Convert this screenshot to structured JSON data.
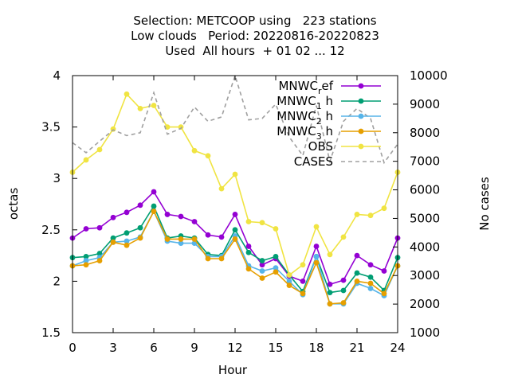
{
  "chart_data": {
    "type": "line",
    "title_lines": [
      "Selection: METCOOP using   223 stations",
      "Low clouds   Period: 20220816-20220823",
      "Used  All hours  + 01 02 ... 12"
    ],
    "xlabel": "Hour",
    "ylabel": "octas",
    "y2label": "No cases",
    "xlim": [
      0,
      24
    ],
    "ylim": [
      1.5,
      4
    ],
    "y2lim": [
      1000,
      10000
    ],
    "x_ticks": [
      "0",
      "3",
      "6",
      "9",
      "12",
      "15",
      "18",
      "21",
      "24"
    ],
    "y_ticks": [
      "1.5",
      "2",
      "2.5",
      "3",
      "3.5",
      "4"
    ],
    "y2_ticks": [
      "1000",
      "2000",
      "3000",
      "4000",
      "5000",
      "6000",
      "7000",
      "8000",
      "9000",
      "10000"
    ],
    "x": [
      0,
      1,
      2,
      3,
      4,
      5,
      6,
      7,
      8,
      9,
      10,
      11,
      12,
      13,
      14,
      15,
      16,
      17,
      18,
      19,
      20,
      21,
      22,
      23,
      24
    ],
    "series": [
      {
        "name": "MNWC_ref",
        "legend": [
          "MNWC",
          "r",
          "ef"
        ],
        "color": "#9400d3",
        "axis": "y",
        "values": [
          2.42,
          2.51,
          2.52,
          2.62,
          2.67,
          2.74,
          2.87,
          2.65,
          2.63,
          2.58,
          2.45,
          2.43,
          2.65,
          2.34,
          2.16,
          2.22,
          2.05,
          2.0,
          2.34,
          1.97,
          2.01,
          2.25,
          2.16,
          2.1,
          2.42
        ]
      },
      {
        "name": "MNWC_1h",
        "legend": [
          "MNWC",
          "1",
          " h"
        ],
        "color": "#009e73",
        "axis": "y",
        "values": [
          2.23,
          2.24,
          2.27,
          2.42,
          2.47,
          2.52,
          2.73,
          2.42,
          2.44,
          2.42,
          2.26,
          2.25,
          2.5,
          2.28,
          2.2,
          2.24,
          2.06,
          1.9,
          2.24,
          1.89,
          1.91,
          2.08,
          2.04,
          1.91,
          2.23
        ]
      },
      {
        "name": "MNWC_2h",
        "legend": [
          "MNWC",
          "2",
          " h"
        ],
        "color": "#56b4e9",
        "axis": "y",
        "values": [
          2.15,
          2.2,
          2.23,
          2.38,
          2.39,
          2.43,
          2.68,
          2.39,
          2.37,
          2.37,
          2.24,
          2.24,
          2.44,
          2.15,
          2.1,
          2.13,
          2.0,
          1.87,
          2.24,
          1.78,
          1.78,
          1.98,
          1.93,
          1.86,
          2.15
        ]
      },
      {
        "name": "MNWC_3h",
        "legend": [
          "MNWC",
          "3",
          " h"
        ],
        "color": "#e69f00",
        "axis": "y",
        "values": [
          2.15,
          2.16,
          2.2,
          2.38,
          2.35,
          2.42,
          2.68,
          2.41,
          2.41,
          2.41,
          2.22,
          2.22,
          2.41,
          2.12,
          2.03,
          2.09,
          1.96,
          1.88,
          2.18,
          1.78,
          1.79,
          2.0,
          1.98,
          1.88,
          2.15
        ]
      },
      {
        "name": "OBS",
        "legend": [
          "OBS",
          "",
          ""
        ],
        "color": "#f0e442",
        "axis": "y",
        "values": [
          3.06,
          3.18,
          3.28,
          3.48,
          3.82,
          3.68,
          3.71,
          3.5,
          3.5,
          3.27,
          3.22,
          2.9,
          3.04,
          2.58,
          2.57,
          2.51,
          2.06,
          2.16,
          2.53,
          2.26,
          2.43,
          2.65,
          2.64,
          2.71,
          3.06
        ]
      },
      {
        "name": "CASES",
        "legend": [
          "CASES",
          "",
          ""
        ],
        "color": "#a0a0a0",
        "axis": "y2",
        "dashed": true,
        "values": [
          7650,
          7300,
          7700,
          8100,
          7900,
          8000,
          9400,
          7950,
          8150,
          8900,
          8400,
          8550,
          10000,
          8450,
          8500,
          9000,
          7850,
          7200,
          8950,
          7000,
          8400,
          8850,
          8500,
          6950,
          7600
        ]
      }
    ]
  }
}
